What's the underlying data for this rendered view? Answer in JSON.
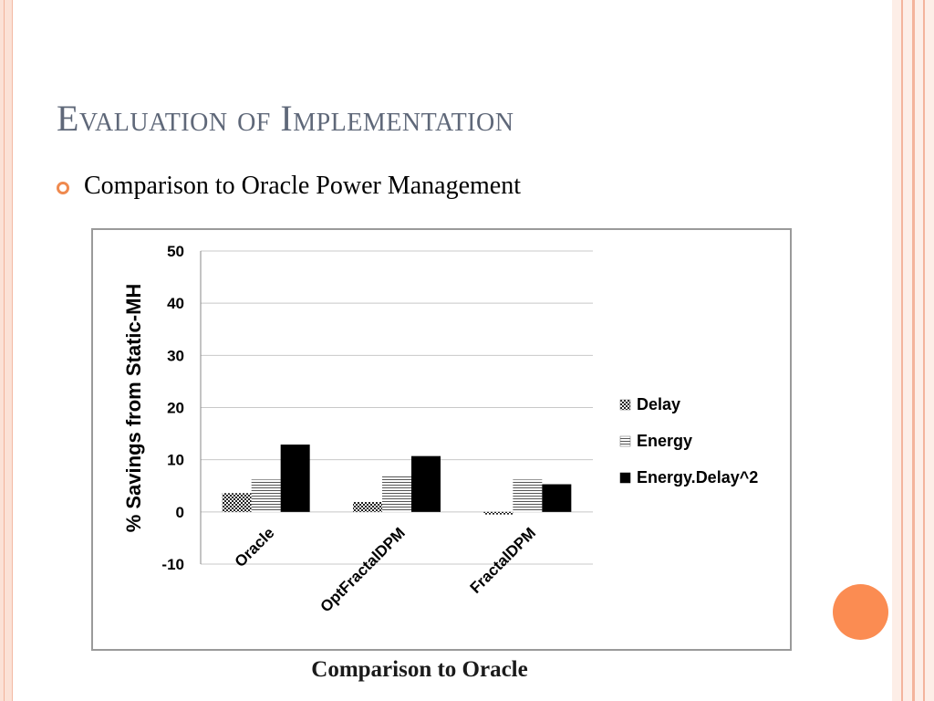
{
  "slide": {
    "title": "Evaluation of Implementation",
    "bullet": "Comparison to Oracle Power Management",
    "caption": "Comparison to Oracle",
    "accent_color": "#fb8c52",
    "bullet_color": "#ef8a4f",
    "title_color": "#5f6879"
  },
  "chart_data": {
    "type": "bar",
    "categories": [
      "Oracle",
      "OptFractalDPM",
      "FractalDPM"
    ],
    "series": [
      {
        "name": "Delay",
        "values": [
          3.6,
          1.9,
          -0.5
        ],
        "pattern": "checker"
      },
      {
        "name": "Energy",
        "values": [
          6.2,
          7.0,
          6.2
        ],
        "pattern": "hstripes"
      },
      {
        "name": "Energy.Delay^2",
        "values": [
          12.9,
          10.7,
          5.3
        ],
        "pattern": "solid"
      }
    ],
    "ylabel": "% Savings from Static-MH",
    "xlabel": "",
    "ylim": [
      -10,
      50
    ],
    "yticks": [
      50,
      40,
      30,
      20,
      10,
      0,
      -10
    ],
    "grid": true,
    "legend": "right"
  }
}
